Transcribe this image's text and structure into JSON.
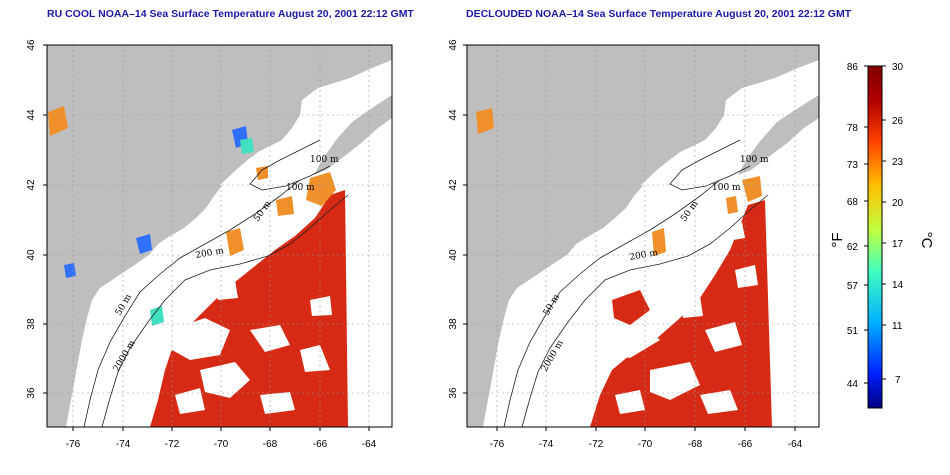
{
  "panels": [
    {
      "id": "left",
      "title": "RU COOL NOAA–14 Sea Surface Temperature August 20, 2001 22:12 GMT"
    },
    {
      "id": "right",
      "title": "DECLOUDED NOAA–14 Sea Surface Temperature August 20, 2001 22:12 GMT"
    }
  ],
  "axes": {
    "x_ticks": [
      "-76",
      "-74",
      "-72",
      "-70",
      "-68",
      "-66",
      "-64"
    ],
    "y_ticks": [
      "46",
      "44",
      "42",
      "40",
      "38",
      "36"
    ],
    "xlim": [
      -77.2,
      -63.1
    ],
    "ylim": [
      35,
      46
    ],
    "grid": "dotted"
  },
  "contour_labels": [
    "100 m",
    "100 m",
    "50 m",
    "200 m",
    "50 m",
    "2000 m"
  ],
  "colorbar": {
    "fahrenheit_ticks": [
      "86",
      "78",
      "73",
      "68",
      "62",
      "57",
      "51",
      "44"
    ],
    "celsius_ticks": [
      "30",
      "26",
      "23",
      "20",
      "17",
      "14",
      "11",
      "7"
    ],
    "unit_f": "°F",
    "unit_c": "°C",
    "range_c": [
      5,
      30
    ],
    "colors": [
      "#00007f",
      "#0020ff",
      "#00b0ff",
      "#40ffc0",
      "#c0ff40",
      "#ffc000",
      "#ff4000",
      "#b00000",
      "#800000"
    ]
  },
  "colors": {
    "land": "#bebebe",
    "ocean_cloud": "#ffffff",
    "warm_sst": "#d72a14",
    "mid_sst": "#f08020",
    "title": "#1a1aa8"
  }
}
